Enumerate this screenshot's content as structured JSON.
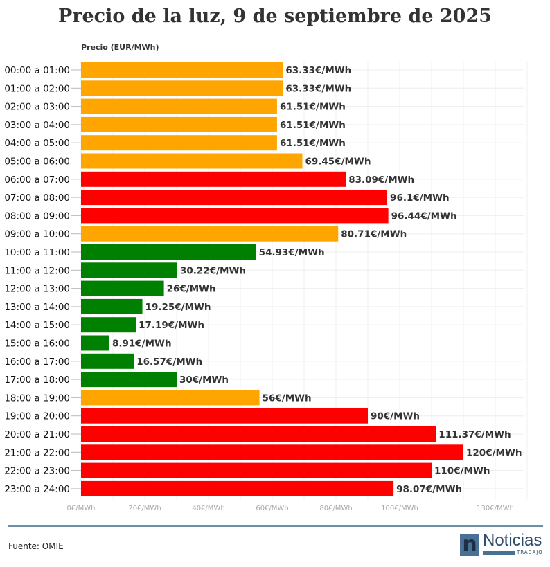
{
  "chart_data": {
    "type": "bar",
    "orientation": "horizontal",
    "title": "Precio de la luz, 9 de septiembre de 2025",
    "ylabel": "Precio (EUR/MWh)",
    "xlim": [
      0,
      140
    ],
    "x_ticks": [
      {
        "v": 0,
        "label": "0€/MWh"
      },
      {
        "v": 20,
        "label": "20€/MWh"
      },
      {
        "v": 40,
        "label": "40€/MWh"
      },
      {
        "v": 60,
        "label": "60€/MWh"
      },
      {
        "v": 80,
        "label": "80€/MWh"
      },
      {
        "v": 100,
        "label": "100€/MWh"
      },
      {
        "v": 130,
        "label": "130€/MWh"
      }
    ],
    "grid": true,
    "colors": {
      "medium": "#FFA500",
      "high": "#FF0000",
      "low": "#008000"
    },
    "categories": [
      "00:00 a 01:00",
      "01:00 a 02:00",
      "02:00 a 03:00",
      "03:00 a 04:00",
      "04:00 a 05:00",
      "05:00 a 06:00",
      "06:00 a 07:00",
      "07:00 a 08:00",
      "08:00 a 09:00",
      "09:00 a 10:00",
      "10:00 a 11:00",
      "11:00 a 12:00",
      "12:00 a 13:00",
      "13:00 a 14:00",
      "14:00 a 15:00",
      "15:00 a 16:00",
      "16:00 a 17:00",
      "17:00 a 18:00",
      "18:00 a 19:00",
      "19:00 a 20:00",
      "20:00 a 21:00",
      "21:00 a 22:00",
      "22:00 a 23:00",
      "23:00 a 24:00"
    ],
    "values": [
      63.33,
      63.33,
      61.51,
      61.51,
      61.51,
      69.45,
      83.09,
      96.1,
      96.44,
      80.71,
      54.93,
      30.22,
      26,
      19.25,
      17.19,
      8.91,
      16.57,
      30,
      56,
      90,
      111.37,
      120,
      110,
      98.07
    ],
    "levels": [
      "medium",
      "medium",
      "medium",
      "medium",
      "medium",
      "medium",
      "high",
      "high",
      "high",
      "medium",
      "low",
      "low",
      "low",
      "low",
      "low",
      "low",
      "low",
      "low",
      "medium",
      "high",
      "high",
      "high",
      "high",
      "high"
    ],
    "labels": [
      "63.33€/MWh",
      "63.33€/MWh",
      "61.51€/MWh",
      "61.51€/MWh",
      "61.51€/MWh",
      "69.45€/MWh",
      "83.09€/MWh",
      "96.1€/MWh",
      "96.44€/MWh",
      "80.71€/MWh",
      "54.93€/MWh",
      "30.22€/MWh",
      "26€/MWh",
      "19.25€/MWh",
      "17.19€/MWh",
      "8.91€/MWh",
      "16.57€/MWh",
      "30€/MWh",
      "56€/MWh",
      "90€/MWh",
      "111.37€/MWh",
      "120€/MWh",
      "110€/MWh",
      "98.07€/MWh"
    ]
  },
  "footer": {
    "source": "Fuente: OMIE",
    "logo_text": "Noticias",
    "logo_sub": "TRABAJO"
  }
}
